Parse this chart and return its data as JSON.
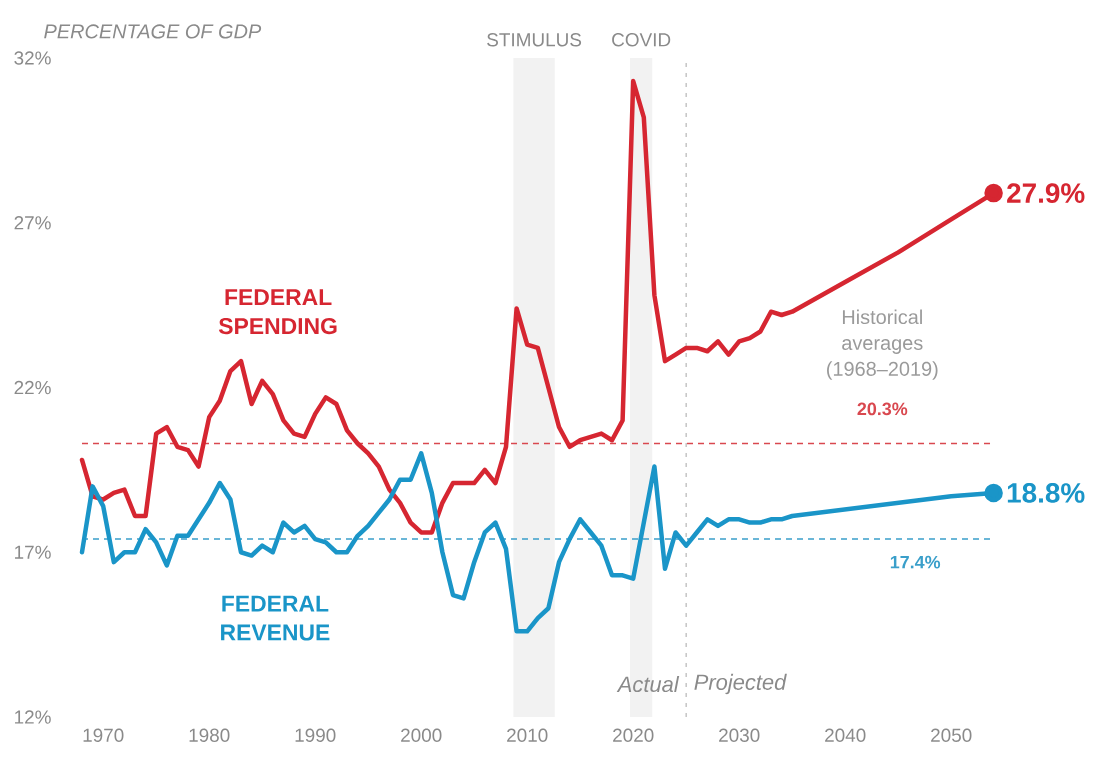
{
  "chart_data": {
    "type": "line",
    "ylabel": "PERCENTAGE OF GDP",
    "ylim": [
      12,
      32
    ],
    "yticks": [
      {
        "value": 12,
        "label": "12%"
      },
      {
        "value": 17,
        "label": "17%"
      },
      {
        "value": 22,
        "label": "22%"
      },
      {
        "value": 27,
        "label": "27%"
      },
      {
        "value": 32,
        "label": "32%"
      }
    ],
    "xlim": [
      1968,
      2054
    ],
    "xticks": [
      1970,
      1980,
      1990,
      2000,
      2010,
      2020,
      2030,
      2040,
      2050
    ],
    "series": [
      {
        "name": "FEDERAL SPENDING",
        "color": "#d62631",
        "x": [
          1968,
          1969,
          1970,
          1971,
          1972,
          1973,
          1974,
          1975,
          1976,
          1977,
          1978,
          1979,
          1980,
          1981,
          1982,
          1983,
          1984,
          1985,
          1986,
          1987,
          1988,
          1989,
          1990,
          1991,
          1992,
          1993,
          1994,
          1995,
          1996,
          1997,
          1998,
          1999,
          2000,
          2001,
          2002,
          2003,
          2004,
          2005,
          2006,
          2007,
          2008,
          2009,
          2010,
          2011,
          2012,
          2013,
          2014,
          2015,
          2016,
          2017,
          2018,
          2019,
          2020,
          2021,
          2022,
          2023,
          2024,
          2025,
          2026,
          2027,
          2028,
          2029,
          2030,
          2031,
          2032,
          2033,
          2034,
          2035,
          2040,
          2045,
          2050,
          2054
        ],
        "values": [
          19.8,
          18.7,
          18.6,
          18.8,
          18.9,
          18.1,
          18.1,
          20.6,
          20.8,
          20.2,
          20.1,
          19.6,
          21.1,
          21.6,
          22.5,
          22.8,
          21.5,
          22.2,
          21.8,
          21.0,
          20.6,
          20.5,
          21.2,
          21.7,
          21.5,
          20.7,
          20.3,
          20.0,
          19.6,
          18.9,
          18.5,
          17.9,
          17.6,
          17.6,
          18.5,
          19.1,
          19.1,
          19.1,
          19.5,
          19.1,
          20.2,
          24.4,
          23.3,
          23.2,
          22.0,
          20.8,
          20.2,
          20.4,
          20.5,
          20.6,
          20.4,
          21.0,
          31.3,
          30.2,
          24.8,
          22.8,
          23.0,
          23.2,
          23.2,
          23.1,
          23.4,
          23.0,
          23.4,
          23.5,
          23.7,
          24.3,
          24.2,
          24.3,
          25.2,
          26.1,
          27.1,
          27.9
        ],
        "value_labels": [
          null,
          null,
          null,
          null,
          null,
          null,
          null,
          null,
          null,
          null,
          null,
          null,
          null,
          null,
          null,
          null,
          null,
          null,
          null,
          null,
          null,
          null,
          null,
          null,
          null,
          null,
          null,
          null,
          null,
          null,
          null,
          null,
          null,
          null,
          null,
          null,
          null,
          null,
          null,
          null,
          null,
          null,
          null,
          null,
          null,
          null,
          null,
          null,
          null,
          null,
          null,
          null,
          null,
          null,
          null,
          null,
          null,
          null,
          null,
          null,
          null,
          null,
          null,
          null,
          null,
          null,
          null,
          null,
          null,
          null,
          null,
          "27.9%"
        ]
      },
      {
        "name": "FEDERAL REVENUE",
        "color": "#1a95c8",
        "x": [
          1968,
          1969,
          1970,
          1971,
          1972,
          1973,
          1974,
          1975,
          1976,
          1977,
          1978,
          1979,
          1980,
          1981,
          1982,
          1983,
          1984,
          1985,
          1986,
          1987,
          1988,
          1989,
          1990,
          1991,
          1992,
          1993,
          1994,
          1995,
          1996,
          1997,
          1998,
          1999,
          2000,
          2001,
          2002,
          2003,
          2004,
          2005,
          2006,
          2007,
          2008,
          2009,
          2010,
          2011,
          2012,
          2013,
          2014,
          2015,
          2016,
          2017,
          2018,
          2019,
          2020,
          2021,
          2022,
          2023,
          2024,
          2025,
          2026,
          2027,
          2028,
          2029,
          2030,
          2031,
          2032,
          2033,
          2034,
          2035,
          2040,
          2045,
          2050,
          2054
        ],
        "values": [
          17.0,
          19.0,
          18.4,
          16.7,
          17.0,
          17.0,
          17.7,
          17.3,
          16.6,
          17.5,
          17.5,
          18.0,
          18.5,
          19.1,
          18.6,
          17.0,
          16.9,
          17.2,
          17.0,
          17.9,
          17.6,
          17.8,
          17.4,
          17.3,
          17.0,
          17.0,
          17.5,
          17.8,
          18.2,
          18.6,
          19.2,
          19.2,
          20.0,
          18.8,
          17.0,
          15.7,
          15.6,
          16.7,
          17.6,
          17.9,
          17.1,
          14.6,
          14.6,
          15.0,
          15.3,
          16.7,
          17.4,
          18.0,
          17.6,
          17.2,
          16.3,
          16.3,
          16.2,
          17.9,
          19.6,
          16.5,
          17.6,
          17.2,
          17.6,
          18.0,
          17.8,
          18.0,
          18.0,
          17.9,
          17.9,
          18.0,
          18.0,
          18.1,
          18.3,
          18.5,
          18.7,
          18.8
        ],
        "value_labels": [
          null,
          null,
          null,
          null,
          null,
          null,
          null,
          null,
          null,
          null,
          null,
          null,
          null,
          null,
          null,
          null,
          null,
          null,
          null,
          null,
          null,
          null,
          null,
          null,
          null,
          null,
          null,
          null,
          null,
          null,
          null,
          null,
          null,
          null,
          null,
          null,
          null,
          null,
          null,
          null,
          null,
          null,
          null,
          null,
          null,
          null,
          null,
          null,
          null,
          null,
          null,
          null,
          null,
          null,
          null,
          null,
          null,
          null,
          null,
          null,
          null,
          null,
          null,
          null,
          null,
          null,
          null,
          null,
          null,
          null,
          null,
          "18.8%"
        ]
      }
    ],
    "bands": [
      {
        "axis": "x",
        "from": 2008.7,
        "to": 2012.6,
        "label": "STIMULUS",
        "color": "#f2f2f2"
      },
      {
        "axis": "x",
        "from": 2019.7,
        "to": 2021.8,
        "label": "COVID",
        "color": "#f2f2f2"
      }
    ],
    "ref_lines": [
      {
        "axis": "y",
        "value": 20.3,
        "label": "20.3%",
        "color": "#d9484f",
        "line_style": "dashed"
      },
      {
        "axis": "y",
        "value": 17.4,
        "label": "17.4%",
        "color": "#3a9fca",
        "line_style": "dashed"
      },
      {
        "axis": "x",
        "value": 2025,
        "color": "#c8c8c8",
        "line_style": "dotted"
      }
    ],
    "annotations": [
      {
        "text": "Actual",
        "x": 2025,
        "y": 13
      },
      {
        "text": "Projected",
        "x": 2025,
        "y": 13
      },
      "Historical averages (1968–2019)"
    ]
  }
}
